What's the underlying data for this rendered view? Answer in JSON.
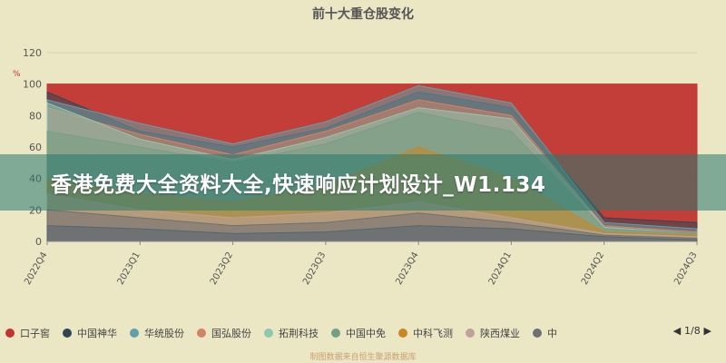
{
  "chart_data": {
    "type": "area",
    "title": "前十大重仓股变化",
    "categories": [
      "2022Q4",
      "2023Q1",
      "2023Q2",
      "2023Q3",
      "2023Q4",
      "2024Q1",
      "2024Q2",
      "2024Q3"
    ],
    "ylim": [
      0,
      120
    ],
    "yticks": [
      0,
      20,
      40,
      60,
      80,
      100,
      120
    ],
    "ylabel": "%",
    "grid": true,
    "legend_position": "bottom",
    "series": [
      {
        "name": "口子窖",
        "color": "#c23531",
        "values": [
          100,
          100,
          100,
          100,
          100,
          100,
          100,
          100
        ]
      },
      {
        "name": "中国神华",
        "color": "#2f4554",
        "values": [
          95,
          70,
          60,
          72,
          95,
          85,
          15,
          12
        ]
      },
      {
        "name": "华统股份",
        "color": "#61a0a8",
        "values": [
          90,
          75,
          62,
          76,
          99,
          88,
          12,
          8
        ]
      },
      {
        "name": "国弘股份",
        "color": "#d48265",
        "values": [
          85,
          68,
          55,
          70,
          90,
          80,
          10,
          6
        ]
      },
      {
        "name": "拓荆科技",
        "color": "#91c7ae",
        "values": [
          88,
          65,
          52,
          66,
          85,
          78,
          9,
          5
        ]
      },
      {
        "name": "中国中免",
        "color": "#749f83",
        "values": [
          70,
          60,
          50,
          62,
          82,
          70,
          8,
          5
        ]
      },
      {
        "name": "中科飞测",
        "color": "#ca8622",
        "values": [
          40,
          30,
          25,
          35,
          60,
          40,
          6,
          4
        ]
      },
      {
        "name": "陕西煤业",
        "color": "#bda29a",
        "values": [
          30,
          20,
          15,
          18,
          25,
          15,
          5,
          3
        ]
      },
      {
        "name": "中",
        "color": "#6e7074",
        "values": [
          20,
          15,
          10,
          12,
          18,
          12,
          4,
          2
        ]
      },
      {
        "name": "",
        "color": "#546570",
        "values": [
          10,
          8,
          5,
          6,
          10,
          8,
          3,
          1
        ]
      }
    ]
  },
  "banner": {
    "text": "香港免费大全资料大全,快速响应计划设计_W1.134"
  },
  "legend": {
    "page": "1/8",
    "prev_icon": "triangle-left-icon",
    "next_icon": "triangle-right-icon"
  },
  "footer": {
    "text": "制图数据来自恒生聚源数据库"
  }
}
